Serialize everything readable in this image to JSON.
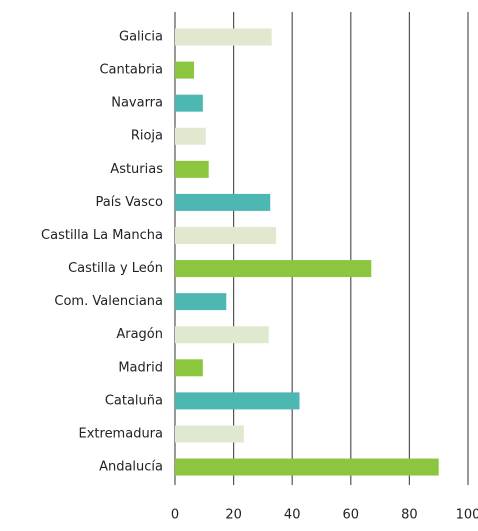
{
  "chart_data": {
    "type": "hbar",
    "categories": [
      "Galicia",
      "Cantabria",
      "Navarra",
      "Rioja",
      "Asturias",
      "País Vasco",
      "Castilla La Mancha",
      "Castilla y León",
      "Com. Valenciana",
      "Aragón",
      "Madrid",
      "Cataluña",
      "Extremadura",
      "Andalucía"
    ],
    "values": [
      33,
      6.5,
      9.5,
      10.5,
      11.5,
      32.5,
      34.5,
      67,
      17.5,
      32,
      9.5,
      42.5,
      23.5,
      90
    ],
    "colors": [
      "#e1e8d0",
      "#8cc63f",
      "#4cb8b1",
      "#e1e8d0",
      "#8cc63f",
      "#4cb8b1",
      "#e1e8d0",
      "#8cc63f",
      "#4cb8b1",
      "#e1e8d0",
      "#8cc63f",
      "#4cb8b1",
      "#e1e8d0",
      "#8cc63f"
    ],
    "xlim": [
      0,
      100
    ],
    "xticks": [
      0,
      20,
      40,
      60,
      80,
      100
    ],
    "grid": true
  }
}
